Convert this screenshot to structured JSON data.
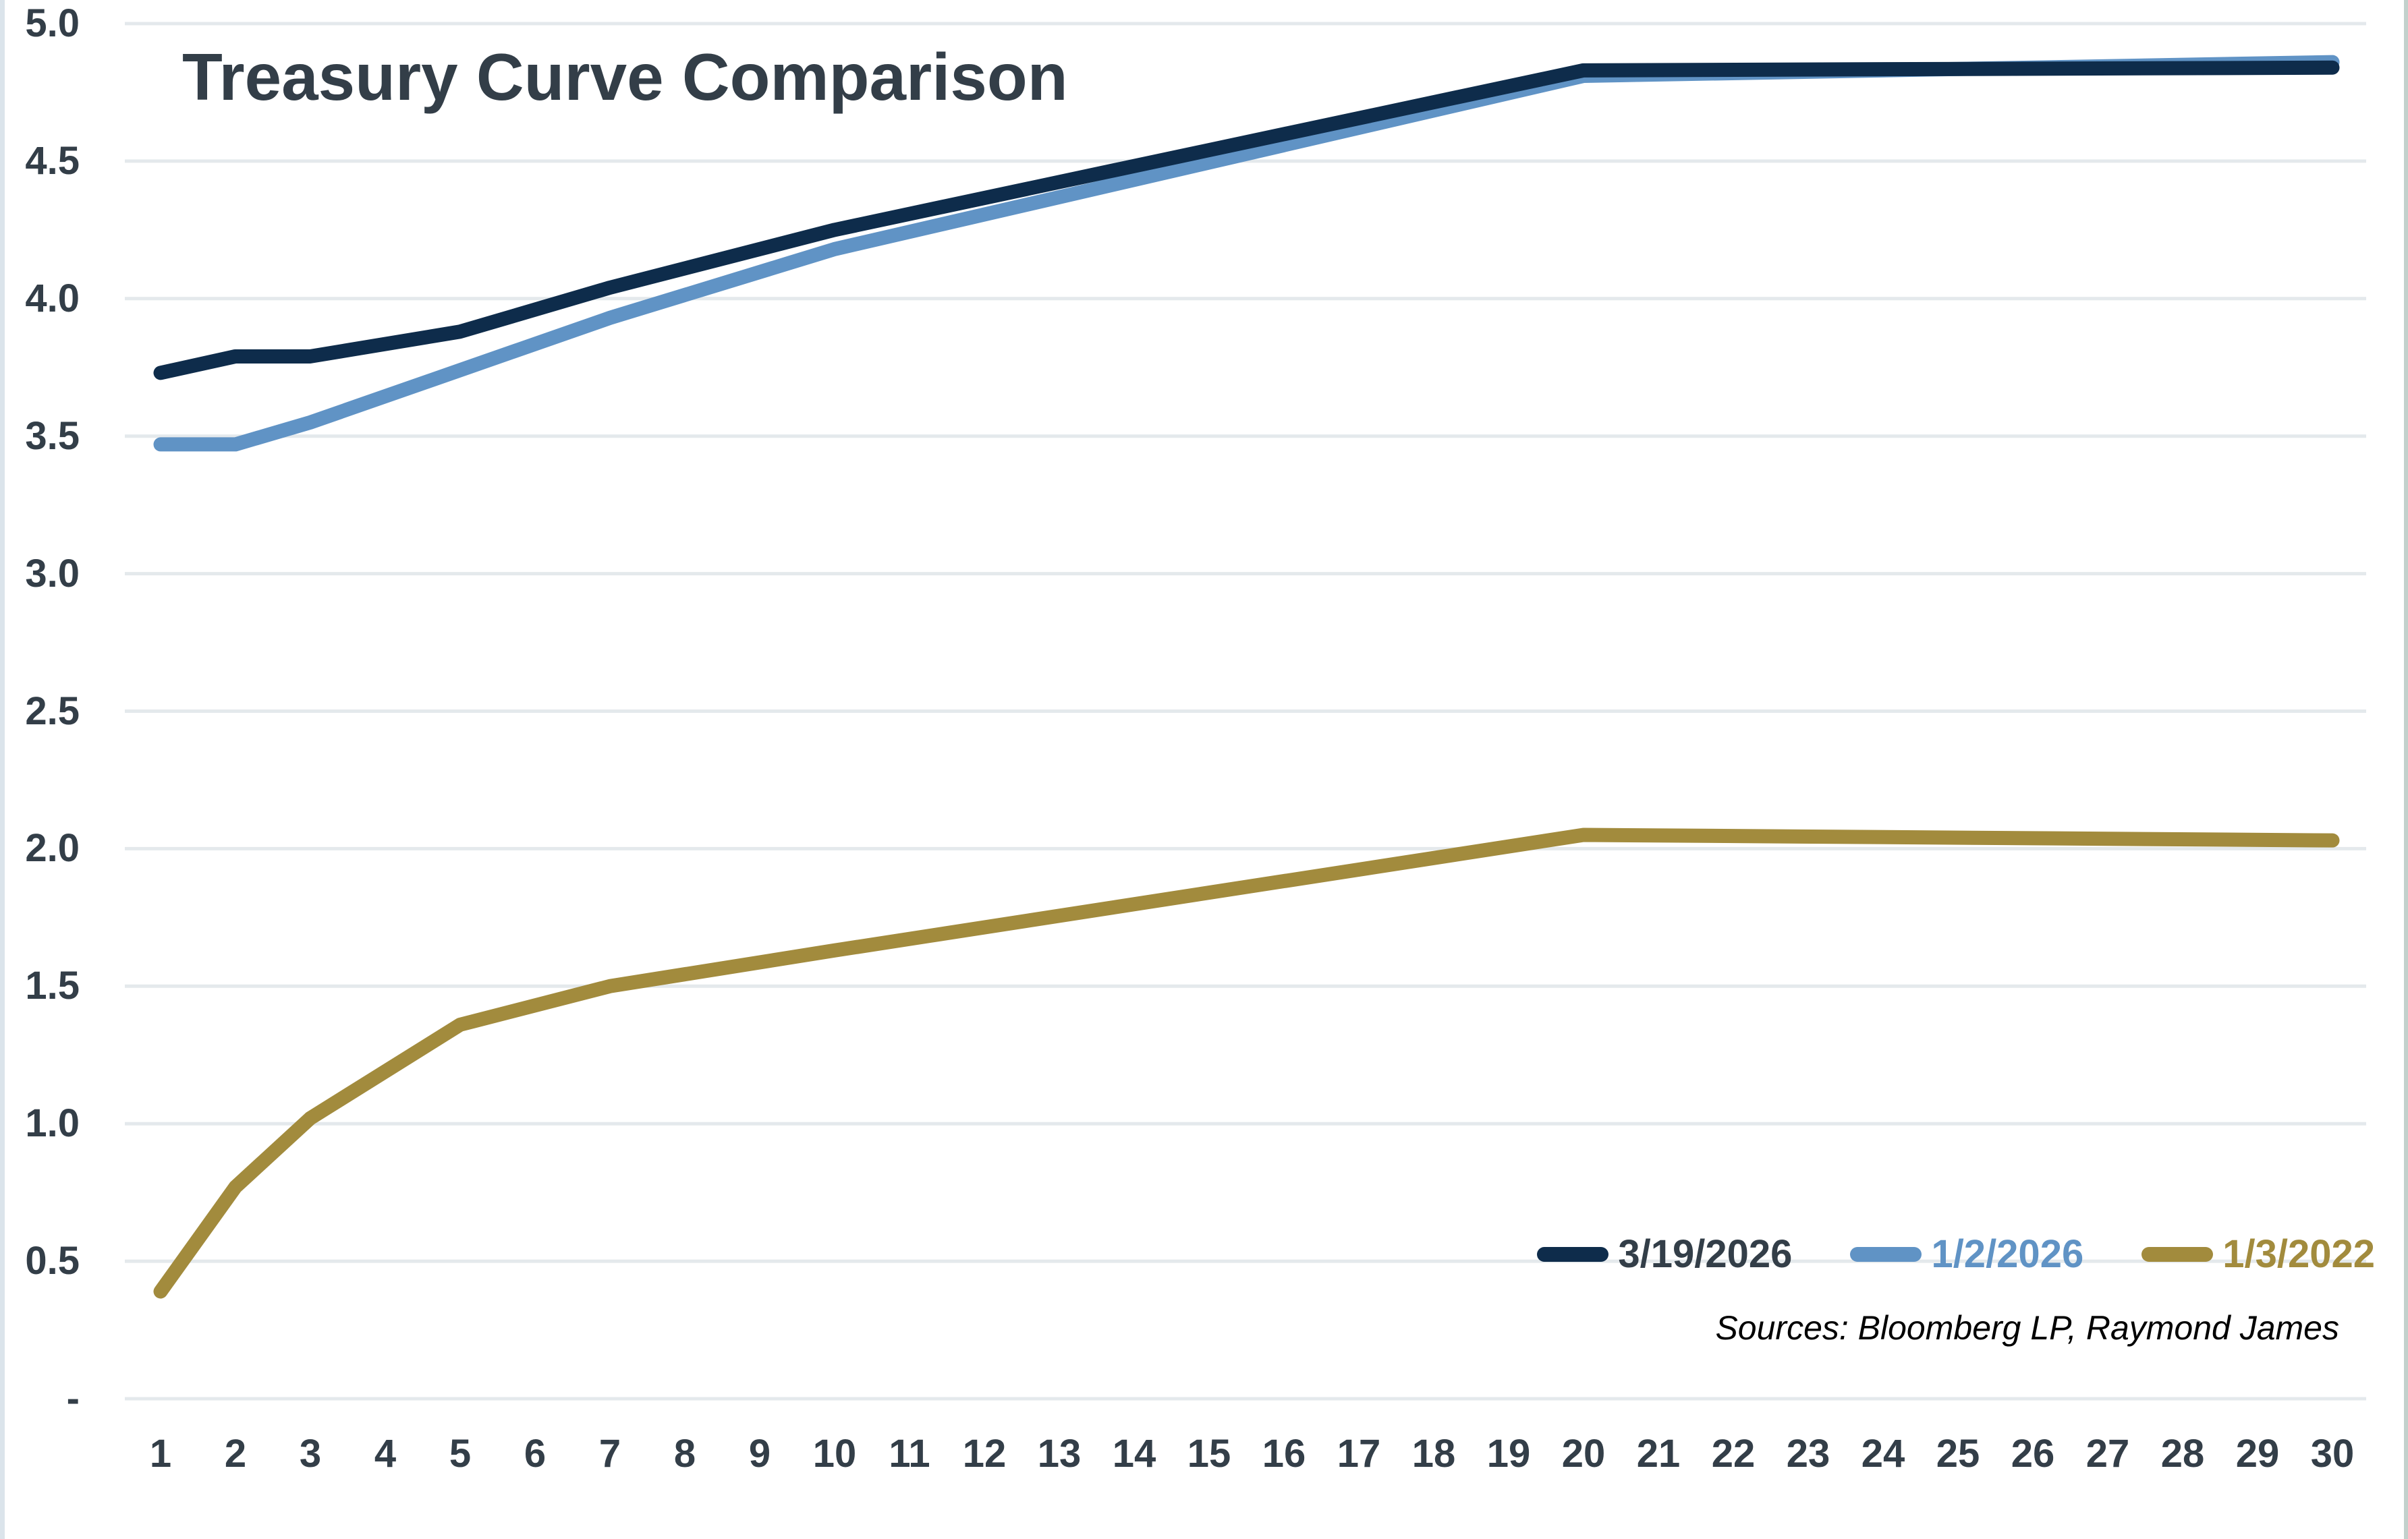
{
  "chart_data": {
    "type": "line",
    "title": "Treasury Curve Comparison",
    "sources_note": "Sources: Bloomberg LP, Raymond James",
    "grid": "horizontal",
    "legend_position": "inside-bottom-right",
    "x_axis": {
      "min": 1,
      "max": 30,
      "tick_labels": [
        "1",
        "2",
        "3",
        "4",
        "5",
        "6",
        "7",
        "8",
        "9",
        "10",
        "11",
        "12",
        "13",
        "14",
        "15",
        "16",
        "17",
        "18",
        "19",
        "20",
        "21",
        "22",
        "23",
        "24",
        "25",
        "26",
        "27",
        "28",
        "29",
        "30"
      ]
    },
    "y_axis": {
      "min": 0,
      "max": 5,
      "tick_labels": [
        {
          "label": "5.0",
          "value": 5.0
        },
        {
          "label": "4.5",
          "value": 4.5
        },
        {
          "label": "4.0",
          "value": 4.0
        },
        {
          "label": "3.5",
          "value": 3.5
        },
        {
          "label": "3.0",
          "value": 3.0
        },
        {
          "label": "2.5",
          "value": 2.5
        },
        {
          "label": "2.0",
          "value": 2.0
        },
        {
          "label": "1.5",
          "value": 1.5
        },
        {
          "label": "1.0",
          "value": 1.0
        },
        {
          "label": "0.5",
          "value": 0.5
        },
        {
          "label": "-",
          "value": 0.0
        }
      ]
    },
    "maturities": [
      1,
      2,
      3,
      5,
      7,
      10,
      20,
      30
    ],
    "series": [
      {
        "name": "3/19/2026",
        "color": "#0e2c4b",
        "label_color": "#333e48",
        "values": [
          3.73,
          3.79,
          3.79,
          3.88,
          4.04,
          4.25,
          4.83,
          4.84
        ]
      },
      {
        "name": "1/2/2026",
        "color": "#6093c5",
        "label_color": "#6093c5",
        "values": [
          3.47,
          3.47,
          3.55,
          3.74,
          3.93,
          4.18,
          4.81,
          4.86
        ]
      },
      {
        "name": "1/3/2022",
        "color": "#a28b3d",
        "label_color": "#a28b3d",
        "values": [
          0.39,
          0.77,
          1.02,
          1.36,
          1.5,
          1.63,
          2.05,
          2.03
        ]
      }
    ],
    "colors": {
      "background": "#ffffff",
      "text": "#333e48",
      "grid": "#e4e9ec",
      "left_border": "#dbe4eb",
      "right_border": "#c2d1cc"
    }
  }
}
